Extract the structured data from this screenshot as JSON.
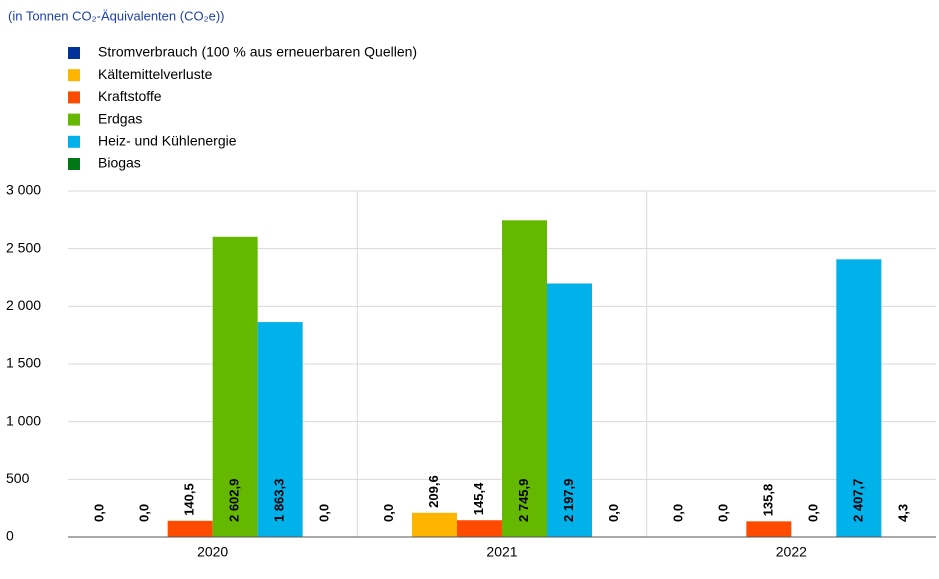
{
  "chart_data": {
    "type": "bar",
    "title": "(in Tonnen CO₂-Äquivalenten (CO₂e))",
    "categories": [
      "2020",
      "2021",
      "2022"
    ],
    "series": [
      {
        "name": "Stromverbrauch (100 % aus erneuerbaren Quellen)",
        "color": "#003299",
        "values": [
          0,
          0,
          0
        ],
        "value_labels": [
          "0,0",
          "0,0",
          "0,0"
        ]
      },
      {
        "name": "Kältemittelverluste",
        "color": "#ffb400",
        "values": [
          0,
          209.6,
          0
        ],
        "value_labels": [
          "0,0",
          "209,6",
          "0,0"
        ]
      },
      {
        "name": "Kraftstoffe",
        "color": "#ff4b00",
        "values": [
          140.5,
          145.4,
          135.8
        ],
        "value_labels": [
          "140,5",
          "145,4",
          "135,8"
        ]
      },
      {
        "name": "Erdgas",
        "color": "#65b800",
        "values": [
          2602.9,
          2745.9,
          0
        ],
        "value_labels": [
          "2 602,9",
          "2 745,9",
          "0,0"
        ]
      },
      {
        "name": "Heiz- und Kühlenergie",
        "color": "#00b1ea",
        "values": [
          1863.3,
          2197.9,
          2407.7
        ],
        "value_labels": [
          "1 863,3",
          "2 197,9",
          "2 407,7"
        ]
      },
      {
        "name": "Biogas",
        "color": "#007816",
        "values": [
          0,
          0,
          4.3
        ],
        "value_labels": [
          "0,0",
          "0,0",
          "4,3"
        ]
      }
    ],
    "ylim": [
      0,
      3000
    ],
    "yticks": [
      0,
      500,
      {
        "value": 1000,
        "label": "1 000"
      },
      {
        "value": 1500,
        "label": "1 500"
      },
      {
        "value": 2000,
        "label": "2 000"
      },
      {
        "value": 2500,
        "label": "2 500"
      },
      {
        "value": 3000,
        "label": "3 000"
      }
    ],
    "grid": true
  }
}
